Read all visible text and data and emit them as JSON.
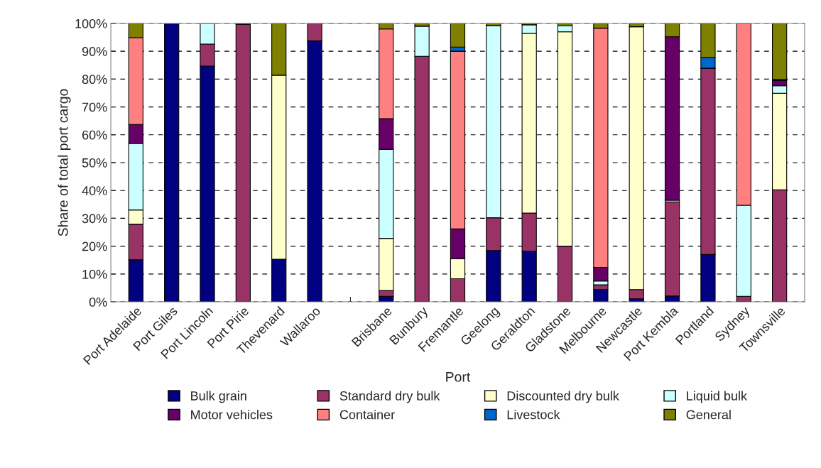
{
  "chart_data": {
    "type": "bar",
    "stacked": true,
    "xlabel": "Port",
    "ylabel": "Share of total port cargo",
    "categories": [
      "Port Adelaide",
      "Port Giles",
      "Port Lincoln",
      "Port Pirie",
      "Thevenard",
      "Wallaroo",
      null,
      "Brisbane",
      "Bunbury",
      "Fremantle",
      "Geelong",
      "Geraldton",
      "Gladstone",
      "Melbourne",
      "Newcastle",
      "Port Kembla",
      "Portland",
      "Sydney",
      "Townsville"
    ],
    "series": [
      {
        "name": "Bulk grain",
        "color": "#000080",
        "values": [
          15.1,
          100,
          84.7,
          null,
          15.3,
          93.7,
          null,
          2.0,
          null,
          null,
          18.4,
          18.2,
          null,
          4.4,
          1.1,
          2.1,
          17.0,
          null,
          null
        ]
      },
      {
        "name": "Standard dry bulk",
        "color": "#993366",
        "values": [
          12.8,
          null,
          7.9,
          99.7,
          null,
          6.3,
          null,
          2.1,
          88.2,
          8.3,
          11.8,
          13.7,
          20.0,
          1.7,
          3.3,
          33.8,
          66.9,
          2.0,
          40.2
        ]
      },
      {
        "name": "Discounted dry bulk",
        "color": "#ffffcc",
        "values": [
          5.1,
          null,
          null,
          null,
          66.1,
          null,
          null,
          18.7,
          null,
          7.2,
          null,
          64.5,
          77.0,
          null,
          94.4,
          null,
          null,
          null,
          34.7
        ]
      },
      {
        "name": "Liquid bulk",
        "color": "#ccffff",
        "values": [
          23.9,
          null,
          7.4,
          null,
          null,
          null,
          null,
          32.0,
          10.8,
          null,
          69.0,
          3.1,
          2.1,
          1.4,
          null,
          0.6,
          null,
          32.7,
          2.7
        ]
      },
      {
        "name": "Motor vehicles",
        "color": "#660066",
        "values": [
          6.8,
          null,
          null,
          null,
          null,
          null,
          null,
          11.0,
          null,
          10.7,
          null,
          null,
          null,
          4.9,
          null,
          58.7,
          null,
          null,
          1.9
        ]
      },
      {
        "name": "Container",
        "color": "#ff8080",
        "values": [
          31.2,
          null,
          null,
          null,
          null,
          null,
          null,
          32.2,
          null,
          63.8,
          null,
          null,
          null,
          85.9,
          null,
          null,
          null,
          65.3,
          null
        ]
      },
      {
        "name": "Livestock",
        "color": "#0066cc",
        "values": [
          null,
          null,
          null,
          null,
          null,
          null,
          null,
          null,
          null,
          1.5,
          null,
          null,
          null,
          null,
          null,
          null,
          3.8,
          null,
          0.4
        ]
      },
      {
        "name": "General",
        "color": "#808000",
        "values": [
          5.1,
          null,
          null,
          0.3,
          18.6,
          null,
          null,
          2.0,
          1.0,
          8.5,
          0.8,
          0.5,
          0.9,
          1.7,
          1.2,
          4.8,
          12.3,
          null,
          20.1
        ]
      }
    ],
    "ylim": [
      0,
      100
    ],
    "yticks": [
      {
        "value": 0,
        "label": "0%"
      },
      {
        "value": 10,
        "label": "10%"
      },
      {
        "value": 20,
        "label": "20%"
      },
      {
        "value": 30,
        "label": "30%"
      },
      {
        "value": 40,
        "label": "40%"
      },
      {
        "value": 50,
        "label": "50%"
      },
      {
        "value": 60,
        "label": "60%"
      },
      {
        "value": 70,
        "label": "70%"
      },
      {
        "value": 80,
        "label": "80%"
      },
      {
        "value": 90,
        "label": "90%"
      },
      {
        "value": 100,
        "label": "100%"
      }
    ],
    "grid": "y",
    "legend": "bottom"
  }
}
